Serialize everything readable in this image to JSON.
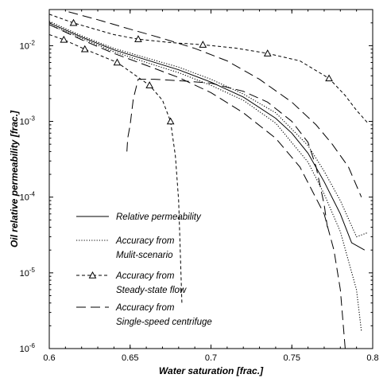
{
  "chart_data": {
    "type": "line",
    "xlabel": "Water saturation [frac.]",
    "ylabel": "Oil relative permeability [frac.]",
    "xlim": [
      0.6,
      0.8
    ],
    "ylim": [
      1e-06,
      0.03
    ],
    "yscale": "log",
    "grid": false,
    "legend_position": "lower-left",
    "x_ticks": [
      "0.6",
      "0.65",
      "0.7",
      "0.75",
      "0.8"
    ],
    "y_ticks": [
      {
        "base": "10",
        "exp": "-6"
      },
      {
        "base": "10",
        "exp": "-5"
      },
      {
        "base": "10",
        "exp": "-4"
      },
      {
        "base": "10",
        "exp": "-3"
      },
      {
        "base": "10",
        "exp": "-2"
      }
    ],
    "legend": [
      {
        "lines": [
          "Relative permeability"
        ],
        "style": "solid",
        "marker": false
      },
      {
        "lines": [
          "Accuracy from",
          "Mulit-scenario"
        ],
        "style": "dotted",
        "marker": false
      },
      {
        "lines": [
          "Accuracy from",
          "Steady-state flow"
        ],
        "style": "dashed-short",
        "marker": true
      },
      {
        "lines": [
          "Accuracy from",
          "Single-speed centrifuge"
        ],
        "style": "dashed-long",
        "marker": false
      }
    ],
    "series": [
      {
        "name": "Relative permeability",
        "style": "solid",
        "points": [
          [
            0.6,
            0.02
          ],
          [
            0.62,
            0.013
          ],
          [
            0.64,
            0.0088
          ],
          [
            0.66,
            0.0065
          ],
          [
            0.68,
            0.0048
          ],
          [
            0.7,
            0.0033
          ],
          [
            0.72,
            0.0021
          ],
          [
            0.74,
            0.0011
          ],
          [
            0.75,
            0.0007
          ],
          [
            0.76,
            0.00038
          ],
          [
            0.77,
            0.00016
          ],
          [
            0.78,
            6e-05
          ],
          [
            0.787,
            2.5e-05
          ],
          [
            0.795,
            2e-05
          ]
        ]
      },
      {
        "name": "Accuracy from Mulit-scenario",
        "style": "dotted",
        "points": [
          [
            0.6,
            0.021
          ],
          [
            0.62,
            0.0135
          ],
          [
            0.64,
            0.0092
          ],
          [
            0.66,
            0.0069
          ],
          [
            0.68,
            0.0052
          ],
          [
            0.7,
            0.0036
          ],
          [
            0.72,
            0.0023
          ],
          [
            0.74,
            0.0013
          ],
          [
            0.76,
            0.00048
          ],
          [
            0.77,
            0.00022
          ],
          [
            0.78,
            9e-05
          ],
          [
            0.79,
            3e-05
          ],
          [
            0.797,
            3.4e-05
          ]
        ]
      },
      {
        "name": "Accuracy from Mulit-scenario",
        "style": "dotted",
        "points": [
          [
            0.6,
            0.019
          ],
          [
            0.62,
            0.0125
          ],
          [
            0.64,
            0.0083
          ],
          [
            0.66,
            0.006
          ],
          [
            0.68,
            0.0044
          ],
          [
            0.7,
            0.003
          ],
          [
            0.72,
            0.0019
          ],
          [
            0.74,
            0.00095
          ],
          [
            0.76,
            0.00029
          ],
          [
            0.77,
            0.00011
          ],
          [
            0.78,
            3.5e-05
          ],
          [
            0.79,
            6e-06
          ],
          [
            0.793,
            1.7e-06
          ]
        ]
      },
      {
        "name": "Accuracy from Steady-state flow",
        "style": "dashed-short",
        "points": [
          [
            0.6,
            0.026
          ],
          [
            0.615,
            0.02
          ],
          [
            0.64,
            0.014
          ],
          [
            0.655,
            0.0122
          ],
          [
            0.675,
            0.011
          ],
          [
            0.695,
            0.0103
          ],
          [
            0.715,
            0.0093
          ],
          [
            0.735,
            0.0079
          ],
          [
            0.755,
            0.0063
          ],
          [
            0.773,
            0.0037
          ],
          [
            0.783,
            0.0022
          ],
          [
            0.79,
            0.0014
          ],
          [
            0.797,
            0.00095
          ]
        ],
        "markers": [
          [
            0.615,
            0.02
          ],
          [
            0.655,
            0.0122
          ],
          [
            0.695,
            0.0103
          ],
          [
            0.735,
            0.0079
          ],
          [
            0.773,
            0.0037
          ]
        ]
      },
      {
        "name": "Accuracy from Steady-state flow",
        "style": "dashed-short",
        "points": [
          [
            0.6,
            0.014
          ],
          [
            0.609,
            0.012
          ],
          [
            0.622,
            0.009
          ],
          [
            0.642,
            0.006
          ],
          [
            0.662,
            0.003
          ],
          [
            0.67,
            0.0019
          ],
          [
            0.675,
            0.001
          ],
          [
            0.678,
            0.00035
          ],
          [
            0.68,
            9e-05
          ],
          [
            0.681,
            2e-05
          ],
          [
            0.682,
            4e-06
          ]
        ],
        "markers": [
          [
            0.609,
            0.012
          ],
          [
            0.622,
            0.009
          ],
          [
            0.642,
            0.006
          ],
          [
            0.662,
            0.003
          ],
          [
            0.675,
            0.001
          ]
        ]
      },
      {
        "name": "Accuracy from Single-speed centrifuge",
        "style": "dashed-long",
        "points": [
          [
            0.612,
            0.028
          ],
          [
            0.63,
            0.022
          ],
          [
            0.65,
            0.0165
          ],
          [
            0.67,
            0.0125
          ],
          [
            0.69,
            0.0092
          ],
          [
            0.71,
            0.0063
          ],
          [
            0.73,
            0.0036
          ],
          [
            0.75,
            0.0018
          ],
          [
            0.765,
            0.0009
          ],
          [
            0.775,
            0.0005
          ],
          [
            0.785,
            0.00025
          ],
          [
            0.793,
            0.0001
          ]
        ]
      },
      {
        "name": "Accuracy from Single-speed centrifuge",
        "style": "dashed-long",
        "points": [
          [
            0.6,
            0.019
          ],
          [
            0.62,
            0.012
          ],
          [
            0.64,
            0.0079
          ],
          [
            0.66,
            0.0055
          ],
          [
            0.68,
            0.0038
          ],
          [
            0.7,
            0.0024
          ],
          [
            0.72,
            0.0013
          ],
          [
            0.74,
            0.0006
          ],
          [
            0.755,
            0.00025
          ],
          [
            0.77,
            6e-05
          ],
          [
            0.776,
            2e-05
          ],
          [
            0.78,
            6e-06
          ],
          [
            0.783,
            1e-06
          ]
        ]
      },
      {
        "name": "Accuracy from Single-speed centrifuge",
        "style": "dashed-long",
        "points": [
          [
            0.648,
            0.0004
          ],
          [
            0.6485,
            0.0006
          ],
          [
            0.65,
            0.0009
          ],
          [
            0.652,
            0.002
          ],
          [
            0.655,
            0.0036
          ],
          [
            0.665,
            0.0036
          ],
          [
            0.685,
            0.0034
          ],
          [
            0.7,
            0.0032
          ],
          [
            0.72,
            0.0025
          ],
          [
            0.735,
            0.0018
          ],
          [
            0.75,
            0.001
          ],
          [
            0.76,
            0.00053
          ],
          [
            0.765,
            0.00025
          ],
          [
            0.77,
            8e-05
          ],
          [
            0.772,
            4e-05
          ]
        ]
      }
    ]
  }
}
